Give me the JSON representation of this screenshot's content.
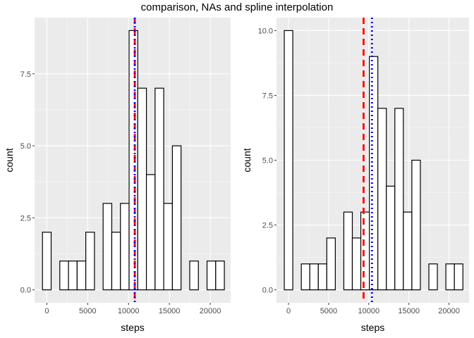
{
  "title": "comparison, NAs and spline interpolation",
  "colors": {
    "panel_bg": "#EBEBEB",
    "grid_major": "#FFFFFF",
    "bar_fill": "#FFFFFF",
    "bar_stroke": "#000000",
    "mean_line": "#FF0000",
    "median_line": "#0000FF",
    "tick_text": "#4D4D4D"
  },
  "chart_data": [
    {
      "type": "bar",
      "xlabel": "steps",
      "ylabel": "count",
      "xlim": [
        -1500,
        22500
      ],
      "ylim": [
        -0.45,
        9.45
      ],
      "x_ticks": [
        0,
        5000,
        10000,
        15000,
        20000
      ],
      "x_tick_labels": [
        "0",
        "5000",
        "10000",
        "15000",
        "20000"
      ],
      "y_ticks": [
        0,
        2.5,
        5,
        7.5
      ],
      "y_tick_labels": [
        "0.0",
        "2.5",
        "5.0",
        "7.5"
      ],
      "bin_width": 1060,
      "bin_centers": [
        0,
        1060,
        2120,
        3180,
        4240,
        5300,
        6360,
        7420,
        8480,
        9540,
        10600,
        11660,
        12720,
        13780,
        14840,
        15900,
        16960,
        18020,
        19080,
        20140,
        21200
      ],
      "values": [
        2,
        0,
        1,
        1,
        1,
        2,
        0,
        3,
        2,
        3,
        9,
        7,
        4,
        7,
        3,
        5,
        0,
        1,
        0,
        1,
        1
      ],
      "vlines": [
        {
          "x": 10766,
          "style": "dashed",
          "color": "#FF0000"
        },
        {
          "x": 10765,
          "style": "dotted",
          "color": "#0000FF"
        }
      ]
    },
    {
      "type": "bar",
      "xlabel": "steps",
      "ylabel": "count",
      "xlim": [
        -1500,
        22500
      ],
      "ylim": [
        -0.5,
        10.5
      ],
      "x_ticks": [
        0,
        5000,
        10000,
        15000,
        20000
      ],
      "x_tick_labels": [
        "0",
        "5000",
        "10000",
        "15000",
        "20000"
      ],
      "y_ticks": [
        0,
        2.5,
        5,
        7.5,
        10
      ],
      "y_tick_labels": [
        "0.0",
        "2.5",
        "5.0",
        "7.5",
        "10.0"
      ],
      "bin_width": 1060,
      "bin_centers": [
        0,
        1060,
        2120,
        3180,
        4240,
        5300,
        6360,
        7420,
        8480,
        9540,
        10600,
        11660,
        12720,
        13780,
        14840,
        15900,
        16960,
        18020,
        19080,
        20140,
        21200
      ],
      "values": [
        10,
        0,
        1,
        1,
        1,
        2,
        0,
        3,
        2,
        3,
        9,
        7,
        4,
        7,
        3,
        5,
        0,
        1,
        0,
        1,
        1
      ],
      "vlines": [
        {
          "x": 9354,
          "style": "dashed",
          "color": "#FF0000"
        },
        {
          "x": 10395,
          "style": "dotted",
          "color": "#0000FF"
        }
      ]
    }
  ]
}
